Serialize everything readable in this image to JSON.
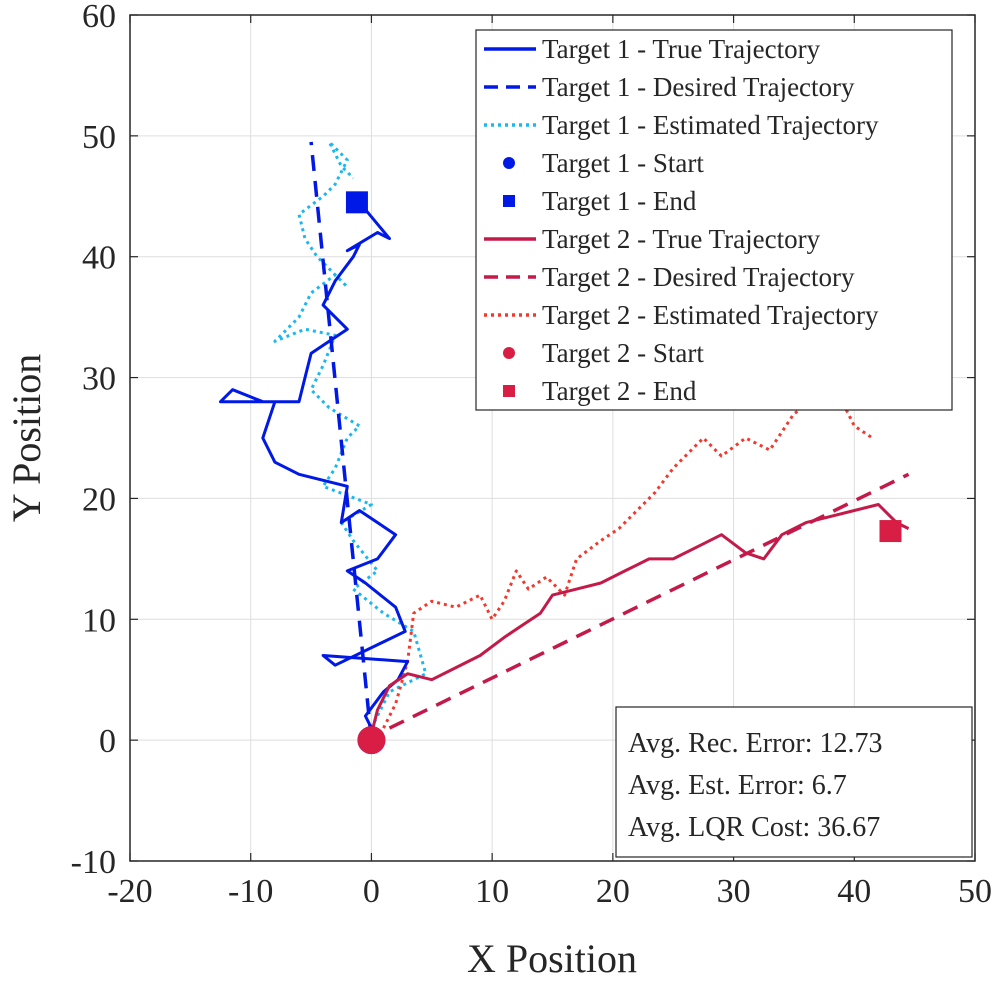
{
  "chart_data": {
    "type": "line",
    "title": "",
    "xlabel": "X Position",
    "ylabel": "Y Position",
    "xlim": [
      -20,
      50
    ],
    "ylim": [
      -10,
      60
    ],
    "xticks": [
      -20,
      -10,
      0,
      10,
      20,
      30,
      40,
      50
    ],
    "yticks": [
      -10,
      0,
      10,
      20,
      30,
      40,
      50,
      60
    ],
    "grid": true,
    "legend_position": "top-right",
    "colors": {
      "target1": "#0019e6",
      "target1_est": "#1ab8ee",
      "target2": "#d81e45",
      "target2_est": "#f2392e"
    },
    "series": [
      {
        "name": "Target 1 - True Trajectory",
        "style": "solid",
        "color": "#0019e6",
        "x": [
          0.0,
          -0.5,
          1.0,
          2.2,
          3.0,
          -4.0,
          -3.0,
          2.8,
          2.0,
          -0.5,
          -2.0,
          0.5,
          2.0,
          -1.0,
          -2.5,
          -2.0,
          -6.0,
          -8.0,
          -9.0,
          -8.0,
          -12.5,
          -11.5,
          -9.0,
          -6.0,
          -5.5,
          -5.0,
          -3.5,
          -2.0,
          -4.0,
          -3.0,
          -1.5,
          -1.0,
          -2.0,
          0.5,
          1.5,
          -1.0
        ],
        "y": [
          1.0,
          2.0,
          4.0,
          5.0,
          6.5,
          7.0,
          6.2,
          9.0,
          11.0,
          13.0,
          14.0,
          15.0,
          17.0,
          19.0,
          18.0,
          21.0,
          22.0,
          23.0,
          25.0,
          28.0,
          28.0,
          29.0,
          28.0,
          28.0,
          30.0,
          32.0,
          33.0,
          34.0,
          36.0,
          38.0,
          40.0,
          41.0,
          40.5,
          42.0,
          41.5,
          44.5
        ]
      },
      {
        "name": "Target 1 - Desired Trajectory",
        "style": "dashed",
        "color": "#0019e6",
        "x": [
          0.0,
          -5.0
        ],
        "y": [
          0.0,
          49.5
        ]
      },
      {
        "name": "Target 1 - Estimated Trajectory",
        "style": "dotted",
        "color": "#1ab8ee",
        "x": [
          0.0,
          1.5,
          4.5,
          3.5,
          1.0,
          -1.5,
          0.5,
          -1.5,
          -2.5,
          0.0,
          -4.0,
          -3.0,
          -2.0,
          -1.0,
          -3.5,
          -5.0,
          -4.0,
          -3.0,
          -5.5,
          -8.0,
          -6.0,
          -5.0,
          -3.0,
          -2.0,
          -4.5,
          -5.5,
          -6.0,
          -4.0,
          -3.0,
          -2.0,
          -3.5,
          -2.5,
          -1.5
        ],
        "y": [
          1.0,
          4.0,
          5.5,
          9.0,
          10.5,
          12.5,
          14.0,
          16.5,
          18.0,
          19.5,
          21.0,
          22.5,
          25.0,
          26.0,
          27.5,
          29.0,
          31.0,
          33.5,
          34.0,
          33.0,
          35.0,
          37.0,
          38.5,
          37.5,
          40.0,
          41.5,
          43.5,
          45.0,
          46.0,
          48.0,
          49.5,
          47.5,
          46.5
        ]
      },
      {
        "name": "Target 1 - Start",
        "style": "marker-circle",
        "color": "#0019e6",
        "x": [
          0.0
        ],
        "y": [
          0.0
        ]
      },
      {
        "name": "Target 1 - End",
        "style": "marker-square",
        "color": "#0019e6",
        "x": [
          -1.2
        ],
        "y": [
          44.5
        ]
      },
      {
        "name": "Target 2 - True Trajectory",
        "style": "solid",
        "color": "#c41a49",
        "x": [
          0.0,
          0.5,
          1.5,
          3.0,
          5.0,
          7.0,
          9.0,
          11.0,
          12.5,
          14.0,
          15.0,
          17.0,
          19.0,
          21.0,
          23.0,
          25.0,
          27.0,
          29.0,
          31.0,
          32.5,
          34.0,
          36.0,
          38.0,
          40.0,
          42.0,
          43.5,
          44.5
        ],
        "y": [
          0.5,
          2.5,
          4.5,
          5.5,
          5.0,
          6.0,
          7.0,
          8.5,
          9.5,
          10.5,
          12.0,
          12.5,
          13.0,
          14.0,
          15.0,
          15.0,
          16.0,
          17.0,
          15.5,
          15.0,
          17.0,
          18.0,
          18.5,
          19.0,
          19.5,
          18.0,
          17.5
        ]
      },
      {
        "name": "Target 2 - Desired Trajectory",
        "style": "dashed",
        "color": "#c41a49",
        "x": [
          1.5,
          44.5
        ],
        "y": [
          1.0,
          22.0
        ]
      },
      {
        "name": "Target 2 - Estimated Trajectory",
        "style": "dotted",
        "color": "#f2392e",
        "x": [
          1.0,
          2.0,
          3.0,
          3.5,
          5.0,
          7.0,
          9.0,
          10.0,
          11.0,
          12.0,
          13.0,
          14.5,
          16.0,
          17.0,
          19.0,
          20.5,
          22.0,
          23.5,
          25.0,
          26.5,
          27.5,
          29.0,
          31.0,
          33.0,
          35.0,
          36.5,
          37.5,
          39.0,
          40.0,
          41.5
        ],
        "y": [
          1.0,
          3.0,
          6.5,
          10.5,
          11.5,
          11.0,
          12.0,
          10.0,
          11.5,
          14.0,
          12.5,
          13.5,
          12.0,
          15.0,
          16.5,
          17.5,
          19.0,
          20.5,
          22.5,
          24.0,
          25.0,
          23.5,
          25.0,
          24.0,
          27.0,
          28.0,
          29.5,
          28.0,
          26.0,
          25.0
        ]
      },
      {
        "name": "Target 2 - Start",
        "style": "marker-circle",
        "color": "#d81e45",
        "x": [
          0.0
        ],
        "y": [
          0.0
        ]
      },
      {
        "name": "Target 2 - End",
        "style": "marker-square",
        "color": "#d81e45",
        "x": [
          43.0
        ],
        "y": [
          17.3
        ]
      }
    ],
    "legend": [
      "Target 1 - True Trajectory",
      "Target 1 - Desired Trajectory",
      "Target 1 - Estimated Trajectory",
      "Target 1 - Start",
      "Target 1 - End",
      "Target 2 - True Trajectory",
      "Target 2 - Desired Trajectory",
      "Target 2 - Estimated Trajectory",
      "Target 2 - Start",
      "Target 2 - End"
    ],
    "annotations": [
      "Avg. Rec. Error: 12.73",
      "Avg. Est. Error: 6.7",
      "Avg. LQR Cost: 36.67"
    ]
  }
}
